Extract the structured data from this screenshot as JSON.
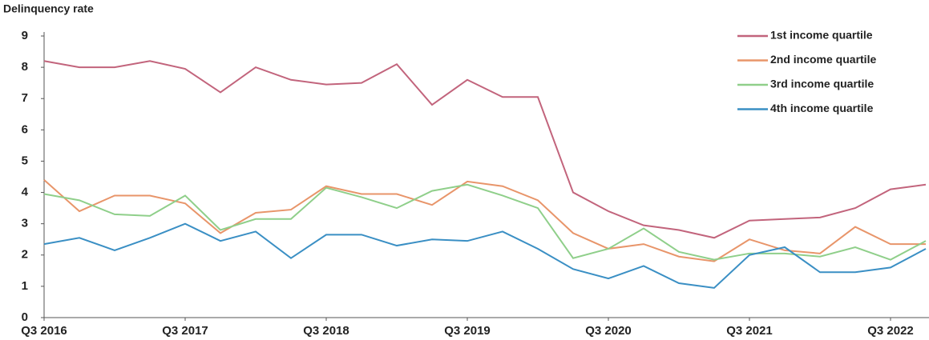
{
  "chart_data": {
    "type": "line",
    "y_label": "Delinquency rate",
    "categories": [
      "Q3 2016",
      null,
      null,
      null,
      "Q3 2017",
      null,
      null,
      null,
      "Q3 2018",
      null,
      null,
      null,
      "Q3 2019",
      null,
      null,
      null,
      "Q3 2020",
      null,
      null,
      null,
      "Q3 2021",
      null,
      null,
      null,
      "Q3 2022",
      null
    ],
    "series": [
      {
        "name": "1st income quartile",
        "color": "#c2647c",
        "values": [
          8.2,
          8.0,
          8.0,
          8.2,
          7.95,
          7.2,
          8.0,
          7.6,
          7.45,
          7.5,
          8.1,
          6.8,
          7.6,
          7.05,
          7.05,
          4.0,
          3.4,
          2.95,
          2.8,
          2.55,
          3.1,
          3.15,
          3.2,
          3.5,
          4.1,
          4.25
        ]
      },
      {
        "name": "2nd income quartile",
        "color": "#e8956a",
        "values": [
          4.4,
          3.4,
          3.9,
          3.9,
          3.65,
          2.7,
          3.35,
          3.45,
          4.2,
          3.95,
          3.95,
          3.6,
          4.35,
          4.2,
          3.75,
          2.7,
          2.2,
          2.35,
          1.95,
          1.8,
          2.5,
          2.15,
          2.05,
          2.9,
          2.35,
          2.35
        ]
      },
      {
        "name": "3rd income quartile",
        "color": "#8fcf8a",
        "values": [
          3.95,
          3.75,
          3.3,
          3.25,
          3.9,
          2.8,
          3.15,
          3.15,
          4.15,
          3.85,
          3.5,
          4.05,
          4.25,
          3.9,
          3.5,
          1.9,
          2.2,
          2.85,
          2.1,
          1.85,
          2.05,
          2.05,
          1.95,
          2.25,
          1.85,
          2.45
        ]
      },
      {
        "name": "4th income quartile",
        "color": "#3a8fc4",
        "values": [
          2.35,
          2.55,
          2.15,
          2.55,
          3.0,
          2.45,
          2.75,
          1.9,
          2.65,
          2.65,
          2.3,
          2.5,
          2.45,
          2.75,
          2.2,
          1.55,
          1.25,
          1.65,
          1.1,
          0.95,
          2.0,
          2.25,
          1.45,
          1.45,
          1.6,
          2.2
        ]
      }
    ],
    "ylim": [
      0,
      9
    ],
    "yticks": [
      0,
      1,
      2,
      3,
      4,
      5,
      6,
      7,
      8,
      9
    ]
  }
}
